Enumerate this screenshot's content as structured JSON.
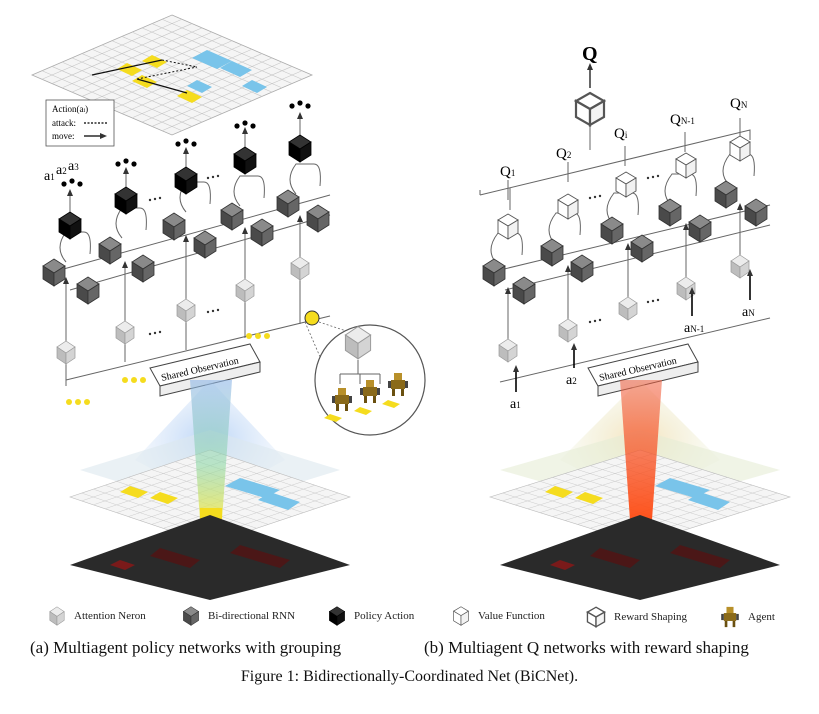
{
  "panel_a": {
    "inset": {
      "title": "Action(a",
      "title_sub": "i",
      "title_end": ")",
      "attack": "attack:",
      "move": "move:"
    },
    "a_labels": [
      {
        "t": "a",
        "s": "1"
      },
      {
        "t": "a",
        "s": "2"
      },
      {
        "t": "a",
        "s": "3"
      }
    ],
    "shared": "Shared Observation"
  },
  "panel_b": {
    "Q": "Q",
    "q_labels": [
      {
        "t": "Q",
        "s": "1"
      },
      {
        "t": "Q",
        "s": "2"
      },
      {
        "t": "Q",
        "s": "i"
      },
      {
        "t": "Q",
        "s": "N-1"
      },
      {
        "t": "Q",
        "s": "N"
      }
    ],
    "a_labels": [
      {
        "t": "a",
        "s": "1"
      },
      {
        "t": "a",
        "s": "2"
      },
      {
        "t": "a",
        "s": "N-1"
      },
      {
        "t": "a",
        "s": "N"
      }
    ],
    "shared": "Shared Observation"
  },
  "legend": {
    "attention": "Attention Neron",
    "birnn": "Bi-directional RNN",
    "policy": "Policy Action",
    "value": "Value Function",
    "reward": "Reward Shaping",
    "agent": "Agent"
  },
  "subcaptions": {
    "a": "(a) Multiagent policy networks with grouping",
    "b": "(b) Multiagent Q networks with reward shaping"
  },
  "caption": "Figure 1: Bidirectionally-Coordinated Net (BiCNet).",
  "colors": {
    "rnn": "#5e5e5e",
    "attention": "#c9c9c9",
    "policy": "#111111",
    "value": "#ffffff",
    "blue": "#79c4ea",
    "yellow": "#f5dc1e"
  }
}
